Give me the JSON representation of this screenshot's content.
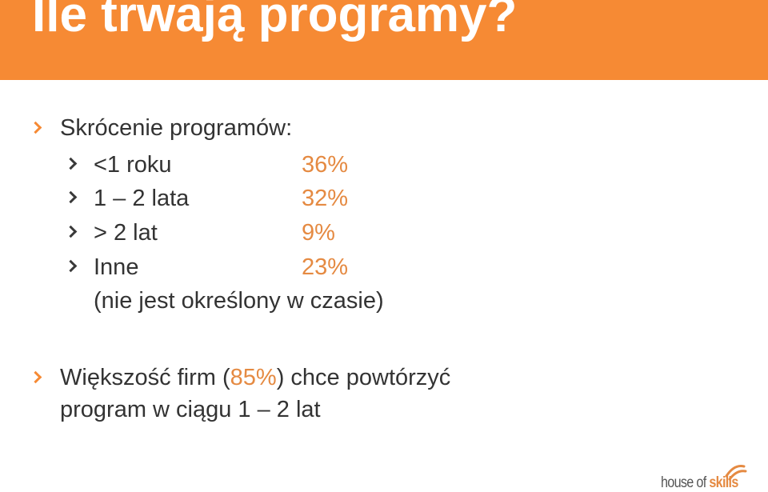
{
  "title": "Ile trwają programy?",
  "intro": "Skrócenie programów:",
  "items": [
    {
      "label": "<1 roku",
      "value": "36%"
    },
    {
      "label": "1 – 2 lata",
      "value": "32%"
    },
    {
      "label": "> 2 lat",
      "value": "9%"
    },
    {
      "label": "Inne",
      "value": "23%"
    }
  ],
  "note": "(nie jest określony w czasie)",
  "summary": {
    "before": "Większość firm (",
    "highlight": "85%",
    "after": ") chce powtórzyć",
    "line2": "program w ciągu 1 – 2 lat"
  },
  "logo": {
    "part1": "house of ",
    "part2": "skills"
  },
  "colors": {
    "header_bg": "#f68a34",
    "accent": "#e58a42",
    "text": "#333333"
  },
  "icons": {
    "bullet": "chevron-right-icon"
  }
}
